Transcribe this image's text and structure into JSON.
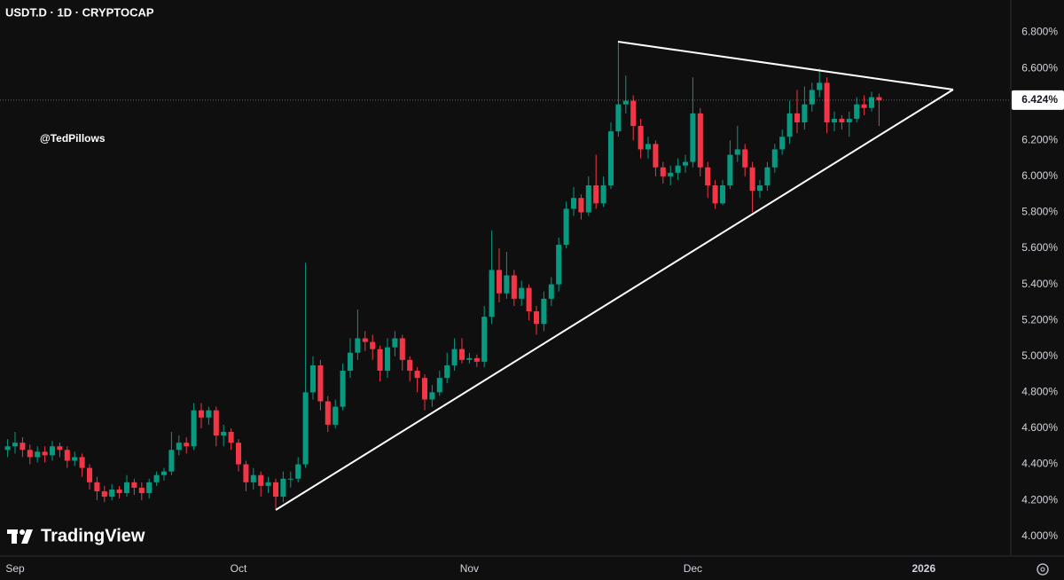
{
  "chart_data": {
    "type": "candlestick",
    "title": "USDT.D · 1D · CRYPTOCAP",
    "annotation": "@TedPillows",
    "watermark": "TradingView",
    "up_color": "#089981",
    "down_color": "#f23645",
    "categories": [
      null,
      "Sep",
      null,
      null,
      null,
      null,
      null,
      null,
      null,
      null,
      null,
      null,
      null,
      null,
      null,
      null,
      null,
      null,
      null,
      null,
      null,
      null,
      null,
      null,
      null,
      null,
      null,
      null,
      null,
      null,
      null,
      "Oct",
      null,
      null,
      null,
      null,
      null,
      null,
      null,
      null,
      null,
      null,
      null,
      null,
      null,
      null,
      null,
      null,
      null,
      null,
      null,
      null,
      null,
      null,
      null,
      null,
      null,
      null,
      null,
      null,
      null,
      null,
      "Nov",
      null,
      null,
      null,
      null,
      null,
      null,
      null,
      null,
      null,
      null,
      null,
      null,
      null,
      null,
      null,
      null,
      null,
      null,
      null,
      null,
      null,
      null,
      null,
      null,
      null,
      null,
      null,
      null,
      null,
      "Dec",
      null,
      null,
      null,
      null,
      null,
      null,
      null,
      null,
      null,
      null,
      null,
      null,
      null,
      null,
      null,
      null,
      null,
      null,
      null,
      null,
      null,
      null,
      null,
      null,
      null,
      null,
      null,
      null,
      null,
      null,
      "2026",
      null,
      null,
      null,
      null,
      null,
      null,
      null,
      null,
      null,
      null,
      null
    ],
    "open": [
      4.48,
      4.5,
      4.52,
      4.48,
      4.44,
      4.47,
      4.45,
      4.5,
      4.48,
      4.42,
      4.44,
      4.38,
      4.3,
      4.25,
      4.22,
      4.26,
      4.24,
      4.3,
      4.27,
      4.24,
      4.3,
      4.34,
      4.36,
      4.48,
      4.52,
      4.5,
      4.7,
      4.66,
      4.7,
      4.56,
      4.58,
      4.52,
      4.4,
      4.3,
      4.34,
      4.28,
      4.3,
      4.22,
      4.32,
      4.32,
      4.4,
      4.8,
      4.95,
      4.75,
      4.62,
      4.72,
      4.92,
      5.02,
      5.1,
      5.08,
      5.04,
      4.92,
      5.05,
      5.1,
      4.98,
      4.92,
      4.88,
      4.76,
      4.8,
      4.88,
      4.95,
      5.04,
      4.98,
      4.99,
      4.97,
      5.22,
      5.48,
      5.35,
      5.45,
      5.32,
      5.38,
      5.25,
      5.18,
      5.32,
      5.4,
      5.62,
      5.82,
      5.88,
      5.8,
      5.95,
      5.85,
      5.95,
      6.25,
      6.4,
      6.42,
      6.28,
      6.15,
      6.18,
      6.05,
      6.0,
      6.02,
      6.06,
      6.08,
      6.35,
      6.05,
      5.95,
      5.85,
      5.95,
      6.12,
      6.15,
      6.05,
      5.92,
      5.95,
      6.05,
      6.15,
      6.22,
      6.35,
      6.3,
      6.4,
      6.48,
      6.52,
      6.3,
      6.32,
      6.3,
      6.32,
      6.4,
      6.38,
      6.44,
      null,
      null,
      null,
      null,
      null,
      null,
      null,
      null,
      null,
      null,
      null,
      null,
      null,
      null,
      null,
      null,
      null
    ],
    "high": [
      4.54,
      4.58,
      4.55,
      4.51,
      4.5,
      4.5,
      4.53,
      4.52,
      4.5,
      4.47,
      4.46,
      4.4,
      4.33,
      4.28,
      4.29,
      4.28,
      4.34,
      4.32,
      4.3,
      4.32,
      4.36,
      4.38,
      4.58,
      4.56,
      4.55,
      4.74,
      4.74,
      4.72,
      4.72,
      4.62,
      4.6,
      4.54,
      4.42,
      4.38,
      4.36,
      4.33,
      4.32,
      4.36,
      4.36,
      4.44,
      5.52,
      5.0,
      4.98,
      4.78,
      4.76,
      4.96,
      5.1,
      5.26,
      5.14,
      5.12,
      5.06,
      5.1,
      5.14,
      5.12,
      5.0,
      4.94,
      4.9,
      4.84,
      4.92,
      5.02,
      5.1,
      5.1,
      5.02,
      5.01,
      5.28,
      5.7,
      5.6,
      5.58,
      5.48,
      5.42,
      5.4,
      5.28,
      5.36,
      5.44,
      5.66,
      5.86,
      5.94,
      5.9,
      6.0,
      6.12,
      6.0,
      6.3,
      6.75,
      6.56,
      6.45,
      6.32,
      6.22,
      6.2,
      6.08,
      6.06,
      6.1,
      6.12,
      6.55,
      6.38,
      6.08,
      5.98,
      5.98,
      6.2,
      6.28,
      6.18,
      6.08,
      5.98,
      6.08,
      6.18,
      6.26,
      6.42,
      6.48,
      6.5,
      6.52,
      6.6,
      6.55,
      6.36,
      6.34,
      6.36,
      6.44,
      6.45,
      6.47,
      6.46,
      null,
      null,
      null,
      null,
      null,
      null,
      null,
      null,
      null,
      null,
      null,
      null,
      null,
      null,
      null,
      null,
      null
    ],
    "low": [
      4.44,
      4.46,
      4.44,
      4.4,
      4.41,
      4.41,
      4.42,
      4.44,
      4.38,
      4.39,
      4.33,
      4.26,
      4.2,
      4.19,
      4.2,
      4.21,
      4.22,
      4.23,
      4.2,
      4.21,
      4.28,
      4.31,
      4.34,
      4.45,
      4.46,
      4.48,
      4.6,
      4.62,
      4.5,
      4.5,
      4.48,
      4.36,
      4.25,
      4.26,
      4.22,
      4.24,
      4.15,
      4.19,
      4.27,
      4.3,
      4.38,
      4.76,
      4.7,
      4.58,
      4.6,
      4.7,
      4.88,
      4.98,
      5.03,
      4.98,
      4.86,
      4.88,
      5.0,
      4.92,
      4.86,
      4.8,
      4.7,
      4.72,
      4.78,
      4.85,
      4.92,
      4.96,
      4.96,
      4.94,
      4.94,
      5.18,
      5.3,
      5.32,
      5.28,
      5.28,
      5.2,
      5.12,
      5.14,
      5.28,
      5.36,
      5.6,
      5.78,
      5.76,
      5.78,
      5.82,
      5.83,
      5.93,
      6.22,
      6.35,
      6.2,
      6.1,
      6.1,
      6.0,
      5.96,
      5.95,
      5.98,
      6.02,
      6.05,
      6.0,
      5.88,
      5.82,
      5.84,
      5.93,
      6.08,
      6.0,
      5.8,
      5.88,
      5.92,
      6.02,
      6.12,
      6.18,
      6.24,
      6.26,
      6.36,
      6.44,
      6.24,
      6.25,
      6.26,
      6.22,
      6.3,
      6.34,
      6.36,
      6.28,
      null,
      null,
      null,
      null,
      null,
      null,
      null,
      null,
      null,
      null,
      null,
      null,
      null,
      null,
      null,
      null,
      null
    ],
    "close": [
      4.5,
      4.52,
      4.48,
      4.44,
      4.47,
      4.45,
      4.5,
      4.48,
      4.42,
      4.44,
      4.38,
      4.3,
      4.25,
      4.22,
      4.26,
      4.24,
      4.3,
      4.27,
      4.24,
      4.3,
      4.34,
      4.36,
      4.48,
      4.52,
      4.5,
      4.7,
      4.66,
      4.7,
      4.56,
      4.58,
      4.52,
      4.4,
      4.3,
      4.34,
      4.28,
      4.3,
      4.22,
      4.32,
      4.32,
      4.4,
      4.8,
      4.95,
      4.75,
      4.62,
      4.72,
      4.92,
      5.02,
      5.1,
      5.08,
      5.04,
      4.92,
      5.05,
      5.1,
      4.98,
      4.92,
      4.88,
      4.76,
      4.8,
      4.88,
      4.95,
      5.04,
      4.98,
      4.99,
      4.97,
      5.22,
      5.48,
      5.35,
      5.45,
      5.32,
      5.38,
      5.25,
      5.18,
      5.32,
      5.4,
      5.62,
      5.82,
      5.88,
      5.8,
      5.95,
      5.85,
      5.95,
      6.25,
      6.4,
      6.42,
      6.28,
      6.15,
      6.18,
      6.05,
      6.0,
      6.02,
      6.06,
      6.08,
      6.35,
      6.05,
      5.95,
      5.85,
      5.95,
      6.12,
      6.15,
      6.05,
      5.92,
      5.95,
      6.05,
      6.15,
      6.22,
      6.35,
      6.3,
      6.4,
      6.48,
      6.52,
      6.3,
      6.32,
      6.3,
      6.32,
      6.4,
      6.38,
      6.44,
      6.424,
      null,
      null,
      null,
      null,
      null,
      null,
      null,
      null,
      null,
      null,
      null,
      null,
      null,
      null,
      null,
      null,
      null
    ],
    "last_price": {
      "value": 6.424,
      "label": "6.424%"
    },
    "ylim": [
      3.9,
      6.98
    ],
    "yticks": [
      {
        "value": 4.0,
        "label": "4.000%"
      },
      {
        "value": 4.2,
        "label": "4.200%"
      },
      {
        "value": 4.4,
        "label": "4.400%"
      },
      {
        "value": 4.6,
        "label": "4.600%"
      },
      {
        "value": 4.8,
        "label": "4.800%"
      },
      {
        "value": 5.0,
        "label": "5.000%"
      },
      {
        "value": 5.2,
        "label": "5.200%"
      },
      {
        "value": 5.4,
        "label": "5.400%"
      },
      {
        "value": 5.6,
        "label": "5.600%"
      },
      {
        "value": 5.8,
        "label": "5.800%"
      },
      {
        "value": 6.0,
        "label": "6.000%"
      },
      {
        "value": 6.2,
        "label": "6.200%"
      },
      {
        "value": 6.4,
        "label": "6.400%"
      },
      {
        "value": 6.6,
        "label": "6.600%"
      },
      {
        "value": 6.8,
        "label": "6.800%"
      }
    ],
    "grid": false
  }
}
